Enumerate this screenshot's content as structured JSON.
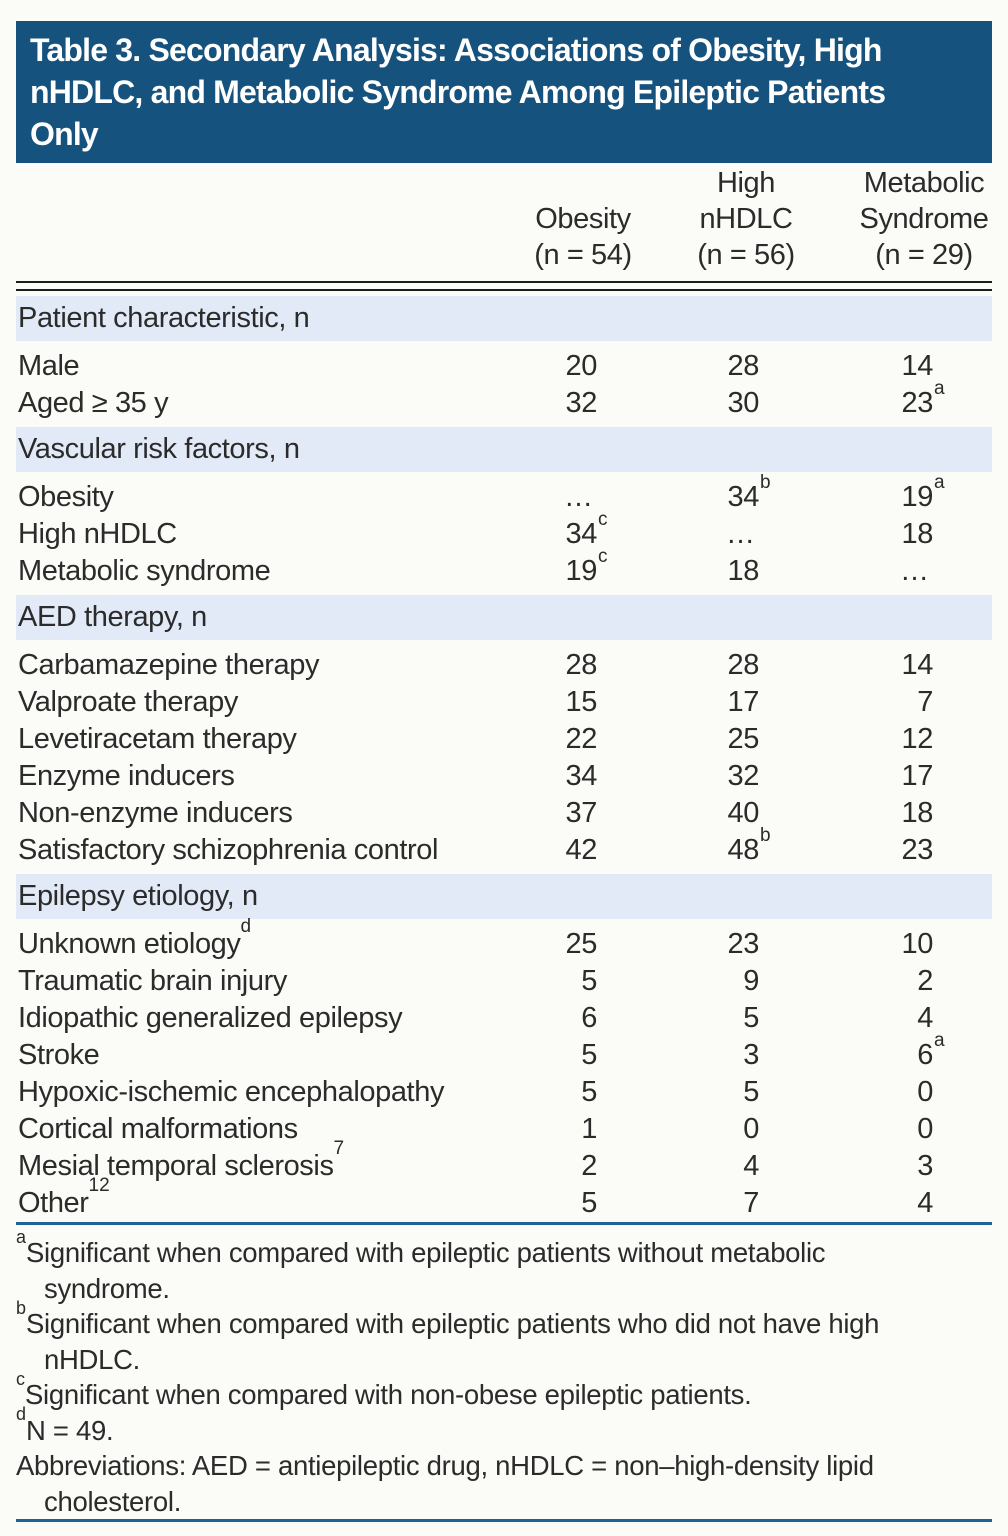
{
  "colors": {
    "navy": "#15527e",
    "section_bg": "#e3eaf7",
    "rule_blue": "#1e6394",
    "text": "#2b2b2b",
    "title_text": "#ffffff",
    "page_bg": "#fbfbf7",
    "head_rule": "#1d1d1d"
  },
  "table": {
    "title_lines": [
      "Table 3. Secondary Analysis: Associations of Obesity, High",
      "nHDLC, and Metabolic Syndrome Among Epileptic Patients",
      "Only"
    ],
    "columns": [
      {
        "lines": [
          "Obesity",
          "(n = 54)"
        ]
      },
      {
        "lines": [
          "High",
          "nHDLC",
          "(n = 56)"
        ]
      },
      {
        "lines": [
          "Metabolic",
          "Syndrome",
          "(n = 29)"
        ]
      }
    ],
    "sections": [
      {
        "header": "Patient characteristic, n",
        "rows": [
          {
            "label": "Male",
            "label_sup": "",
            "values": [
              {
                "v": "20",
                "sup": ""
              },
              {
                "v": "28",
                "sup": ""
              },
              {
                "v": "14",
                "sup": ""
              }
            ]
          },
          {
            "label": "Aged ≥ 35 y",
            "label_sup": "",
            "values": [
              {
                "v": "32",
                "sup": ""
              },
              {
                "v": "30",
                "sup": ""
              },
              {
                "v": "23",
                "sup": "a"
              }
            ]
          }
        ]
      },
      {
        "header": "Vascular risk factors, n",
        "rows": [
          {
            "label": "Obesity",
            "label_sup": "",
            "values": [
              {
                "v": "…",
                "sup": ""
              },
              {
                "v": "34",
                "sup": "b"
              },
              {
                "v": "19",
                "sup": "a"
              }
            ]
          },
          {
            "label": "High nHDLC",
            "label_sup": "",
            "values": [
              {
                "v": "34",
                "sup": "c"
              },
              {
                "v": "…",
                "sup": ""
              },
              {
                "v": "18",
                "sup": ""
              }
            ]
          },
          {
            "label": "Metabolic syndrome",
            "label_sup": "",
            "values": [
              {
                "v": "19",
                "sup": "c"
              },
              {
                "v": "18",
                "sup": ""
              },
              {
                "v": "…",
                "sup": ""
              }
            ]
          }
        ]
      },
      {
        "header": "AED therapy, n",
        "rows": [
          {
            "label": "Carbamazepine therapy",
            "label_sup": "",
            "values": [
              {
                "v": "28",
                "sup": ""
              },
              {
                "v": "28",
                "sup": ""
              },
              {
                "v": "14",
                "sup": ""
              }
            ]
          },
          {
            "label": "Valproate therapy",
            "label_sup": "",
            "values": [
              {
                "v": "15",
                "sup": ""
              },
              {
                "v": "17",
                "sup": ""
              },
              {
                "v": "7",
                "sup": ""
              }
            ]
          },
          {
            "label": "Levetiracetam therapy",
            "label_sup": "",
            "values": [
              {
                "v": "22",
                "sup": ""
              },
              {
                "v": "25",
                "sup": ""
              },
              {
                "v": "12",
                "sup": ""
              }
            ]
          },
          {
            "label": "Enzyme inducers",
            "label_sup": "",
            "values": [
              {
                "v": "34",
                "sup": ""
              },
              {
                "v": "32",
                "sup": ""
              },
              {
                "v": "17",
                "sup": ""
              }
            ]
          },
          {
            "label": "Non-enzyme inducers",
            "label_sup": "",
            "values": [
              {
                "v": "37",
                "sup": ""
              },
              {
                "v": "40",
                "sup": ""
              },
              {
                "v": "18",
                "sup": ""
              }
            ]
          },
          {
            "label": "Satisfactory schizophrenia control",
            "label_sup": "",
            "values": [
              {
                "v": "42",
                "sup": ""
              },
              {
                "v": "48",
                "sup": "b"
              },
              {
                "v": "23",
                "sup": ""
              }
            ]
          }
        ]
      },
      {
        "header": "Epilepsy etiology, n",
        "rows": [
          {
            "label": "Unknown etiology",
            "label_sup": "d",
            "values": [
              {
                "v": "25",
                "sup": ""
              },
              {
                "v": "23",
                "sup": ""
              },
              {
                "v": "10",
                "sup": ""
              }
            ]
          },
          {
            "label": "Traumatic brain injury",
            "label_sup": "",
            "values": [
              {
                "v": "5",
                "sup": ""
              },
              {
                "v": "9",
                "sup": ""
              },
              {
                "v": "2",
                "sup": ""
              }
            ]
          },
          {
            "label": "Idiopathic generalized epilepsy",
            "label_sup": "",
            "values": [
              {
                "v": "6",
                "sup": ""
              },
              {
                "v": "5",
                "sup": ""
              },
              {
                "v": "4",
                "sup": ""
              }
            ]
          },
          {
            "label": "Stroke",
            "label_sup": "",
            "values": [
              {
                "v": "5",
                "sup": ""
              },
              {
                "v": "3",
                "sup": ""
              },
              {
                "v": "6",
                "sup": "a"
              }
            ]
          },
          {
            "label": "Hypoxic-ischemic encephalopathy",
            "label_sup": "",
            "values": [
              {
                "v": "5",
                "sup": ""
              },
              {
                "v": "5",
                "sup": ""
              },
              {
                "v": "0",
                "sup": ""
              }
            ]
          },
          {
            "label": "Cortical malformations",
            "label_sup": "",
            "values": [
              {
                "v": "1",
                "sup": ""
              },
              {
                "v": "0",
                "sup": ""
              },
              {
                "v": "0",
                "sup": ""
              }
            ]
          },
          {
            "label": "Mesial temporal sclerosis",
            "label_sup": "7",
            "values": [
              {
                "v": "2",
                "sup": ""
              },
              {
                "v": "4",
                "sup": ""
              },
              {
                "v": "3",
                "sup": ""
              }
            ]
          },
          {
            "label": "Other",
            "label_sup": "12",
            "values": [
              {
                "v": "5",
                "sup": ""
              },
              {
                "v": "7",
                "sup": ""
              },
              {
                "v": "4",
                "sup": ""
              }
            ]
          }
        ]
      }
    ],
    "footnotes": [
      {
        "sup": "a",
        "lines": [
          "Significant when compared with epileptic patients without metabolic",
          "syndrome."
        ]
      },
      {
        "sup": "b",
        "lines": [
          "Significant when compared with epileptic patients who did not have high",
          "nHDLC."
        ]
      },
      {
        "sup": "c",
        "lines": [
          "Significant when compared with non-obese epileptic patients."
        ]
      },
      {
        "sup": "d",
        "lines": [
          "N = 49."
        ]
      },
      {
        "sup": "",
        "lines": [
          "Abbreviations: AED = antiepileptic drug, nHDLC = non–high-density lipid",
          "cholesterol."
        ]
      }
    ]
  }
}
